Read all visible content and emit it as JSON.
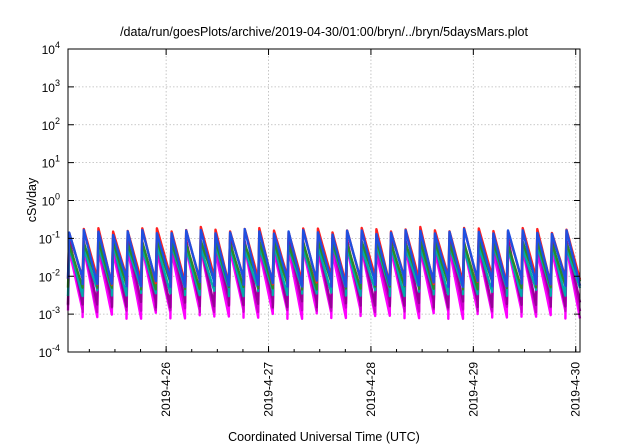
{
  "chart_data": {
    "type": "line",
    "title": "/data/run/goesPlots/archive/2019-04-30/01:00/bryn/../bryn/5daysMars.plot",
    "xlabel": "Coordinated Universal Time (UTC)",
    "ylabel": "cSv/day",
    "yscale": "log",
    "ylim": [
      0.0001,
      10000
    ],
    "y_ticks": [
      {
        "base": "10",
        "exp": "-4",
        "value": 0.0001
      },
      {
        "base": "10",
        "exp": "-3",
        "value": 0.001
      },
      {
        "base": "10",
        "exp": "-2",
        "value": 0.01
      },
      {
        "base": "10",
        "exp": "-1",
        "value": 0.1
      },
      {
        "base": "10",
        "exp": "0",
        "value": 1
      },
      {
        "base": "10",
        "exp": "1",
        "value": 10
      },
      {
        "base": "10",
        "exp": "2",
        "value": 100
      },
      {
        "base": "10",
        "exp": "3",
        "value": 1000
      },
      {
        "base": "10",
        "exp": "4",
        "value": 10000
      }
    ],
    "x_range": [
      "2019-04-25 01:00",
      "2019-04-30 01:00"
    ],
    "x_ticks": [
      "2019-4-26",
      "2019-4-27",
      "2019-4-28",
      "2019-4-29",
      "2019-4-30"
    ],
    "grid": true,
    "series": [
      {
        "color": "#ff00ff",
        "peak": 0.05,
        "trough": 0.001
      },
      {
        "color": "#cc00cc",
        "peak": 0.07,
        "trough": 0.0015
      },
      {
        "color": "#990099",
        "peak": 0.09,
        "trough": 0.002
      },
      {
        "color": "#00aaaa",
        "peak": 0.06,
        "trough": 0.004
      },
      {
        "color": "#2a8a2a",
        "peak": 0.08,
        "trough": 0.006
      },
      {
        "color": "#ff2020",
        "peak": 0.17,
        "trough": 0.008
      },
      {
        "color": "#1f4fe0",
        "peak": 0.15,
        "trough": 0.007
      }
    ],
    "cycles_per_day": 7
  }
}
